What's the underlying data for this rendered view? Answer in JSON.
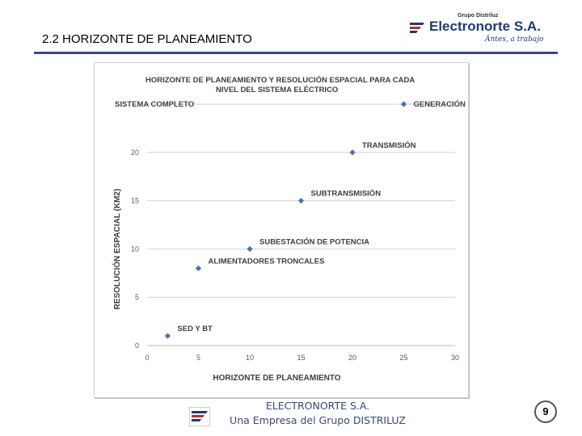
{
  "slide": {
    "title": "2.2  HORIZONTE DE PLANEAMIENTO",
    "page_number": "9"
  },
  "brand": {
    "group": "Grupo Distriluz",
    "name": "Electronorte S.A.",
    "tagline": "Ántes, a trabajo",
    "accent": "#1f3a7a",
    "logo_icon": "electronorte-logo-icon"
  },
  "footer": {
    "line1": "ELECTRONORTE S.A.",
    "line2": "Una Empresa del Grupo DISTRILUZ"
  },
  "chart_data": {
    "type": "scatter",
    "title_line1": "HORIZONTE DE PLANEAMIENTO Y RESOLUCIÓN ESPACIAL PARA CADA",
    "title_line2": "NIVEL DEL SISTEMA ELÉCTRICO",
    "xlabel": "HORIZONTE DE PLANEAMIENTO",
    "ylabel": "RESOLUCIÓN ESPACIAL (KM2)",
    "top_label": "SISTEMA COMPLETO",
    "xlim": [
      0,
      30
    ],
    "ylim": [
      0,
      25
    ],
    "x_ticks": [
      "0",
      "5",
      "10",
      "15",
      "20",
      "25",
      "30"
    ],
    "y_ticks": [
      "0",
      "5",
      "10",
      "15",
      "20"
    ],
    "grid": true,
    "marker_color": "#4a72b0",
    "points": [
      {
        "x": 2,
        "y": 1,
        "label": "SED Y BT"
      },
      {
        "x": 5,
        "y": 8,
        "label": "ALIMENTADORES TRONCALES"
      },
      {
        "x": 10,
        "y": 10,
        "label": "SUBESTACIÓN DE POTENCIA"
      },
      {
        "x": 15,
        "y": 15,
        "label": "SUBTRANSMISIÓN"
      },
      {
        "x": 20,
        "y": 20,
        "label": "TRANSMISIÓN"
      },
      {
        "x": 25,
        "y": 25,
        "label": "GENERACIÓN"
      }
    ]
  }
}
